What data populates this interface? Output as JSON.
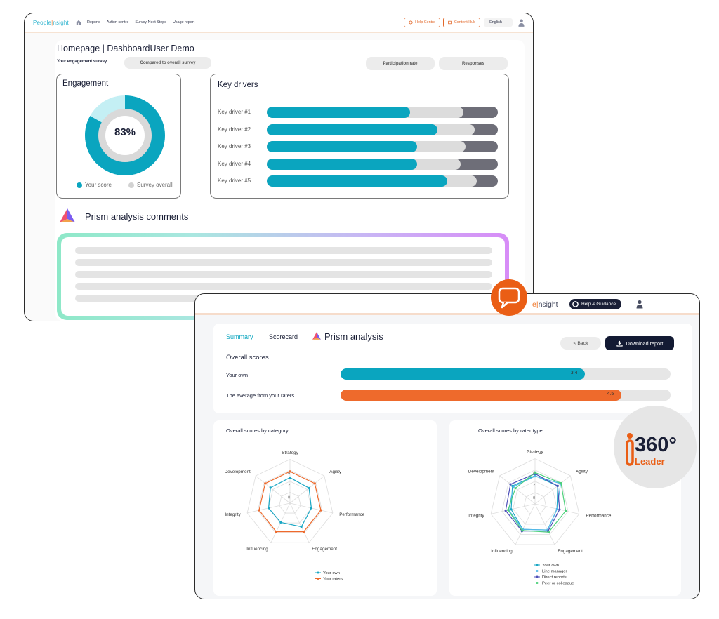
{
  "front": {
    "logo": {
      "left": "People",
      "sep": "|",
      "right": "nsight"
    },
    "nav": [
      "Reports",
      "Action centre",
      "Survey Next Steps",
      "Usage report"
    ],
    "help_centre": "Help Centre",
    "content_hub": "Content Hub",
    "language": "English",
    "page_title": "Homepage | DashboardUser Demo",
    "survey_label": "Your engagement survey",
    "compare_pill": "Compared to overall survey",
    "participation_pill": "Participation rate",
    "responses_pill": "Responses",
    "engagement": {
      "title": "Engagement",
      "score_text": "83%",
      "score": 0.83,
      "legend_your": "Your score",
      "legend_overall": "Survey overall"
    },
    "key_drivers": {
      "title": "Key drivers",
      "items": [
        {
          "label": "Key driver #1",
          "score": 0.62,
          "overall": 0.85
        },
        {
          "label": "Key driver #2",
          "score": 0.74,
          "overall": 0.9
        },
        {
          "label": "Key driver #3",
          "score": 0.65,
          "overall": 0.86
        },
        {
          "label": "Key driver #4",
          "score": 0.65,
          "overall": 0.84
        },
        {
          "label": "Key driver #5",
          "score": 0.78,
          "overall": 0.91
        }
      ]
    },
    "prism_title": "Prism analysis comments"
  },
  "back": {
    "logo": {
      "sep": "e|",
      "right": "nsight"
    },
    "help_btn": "Help & Guidance",
    "tabs": {
      "summary": "Summary",
      "scorecard": "Scorecard"
    },
    "prism_heading": "Prism analysis",
    "back_btn": "< Back",
    "download_btn": "Download report",
    "overall_title": "Overall scores",
    "scores": [
      {
        "label": "Your own",
        "value": 3.4,
        "value_text": "3.4",
        "fraction": 0.74,
        "color": "#0aa5bf"
      },
      {
        "label": "The average from your raters",
        "value": 4.5,
        "value_text": "4.5",
        "fraction": 0.85,
        "color": "#ee6a2c"
      }
    ],
    "radar_category": {
      "title": "Overall scores by category",
      "axes": [
        "Strategy",
        "Agility",
        "Performance",
        "Engagement",
        "Influencing",
        "Integrity",
        "Development"
      ],
      "ticks": [
        "0",
        "2",
        "4"
      ],
      "series": [
        {
          "name": "Your own",
          "color": "#1aa7c4",
          "values": [
            3.2,
            3.0,
            2.6,
            3.3,
            2.5,
            2.6,
            3.1
          ]
        },
        {
          "name": "Your raters",
          "color": "#ee6a2c",
          "values": [
            4.2,
            4.2,
            4.2,
            4.2,
            4.2,
            4.2,
            4.2
          ]
        }
      ]
    },
    "radar_rater": {
      "title": "Overall scores by rater type",
      "axes": [
        "Strategy",
        "Agility",
        "Performance",
        "Engagement",
        "Influencing",
        "Integrity",
        "Development"
      ],
      "ticks": [
        "0",
        "2",
        "4"
      ],
      "series": [
        {
          "name": "Your own",
          "color": "#1aa7c4",
          "values": [
            3.5,
            3.6,
            2.6,
            3.6,
            3.5,
            2.9,
            3.6
          ]
        },
        {
          "name": "Line manager",
          "color": "#55b8e8",
          "values": [
            3.4,
            4.2,
            2.6,
            3.6,
            3.5,
            3.3,
            3.4
          ]
        },
        {
          "name": "Direct reports",
          "color": "#4d4fb8",
          "values": [
            3.8,
            3.6,
            3.0,
            3.8,
            3.8,
            3.8,
            4.0
          ]
        },
        {
          "name": "Peer or colleague",
          "color": "#4cd07a",
          "values": [
            4.0,
            4.3,
            4.0,
            4.0,
            3.7,
            3.4,
            3.0
          ]
        }
      ]
    }
  },
  "badge": {
    "number": "360°",
    "word": "Leader"
  }
}
